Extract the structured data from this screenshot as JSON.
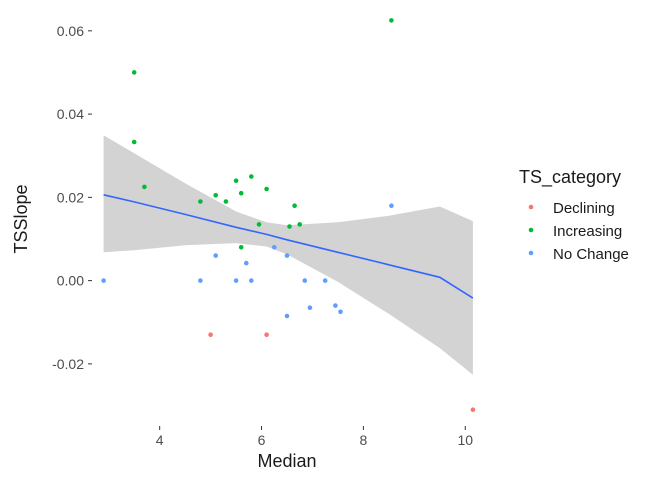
{
  "chart_data": {
    "type": "scatter",
    "title": "",
    "xlabel": "Median",
    "ylabel": "TSSlope",
    "xlim": [
      2.75,
      10.25
    ],
    "ylim": [
      -0.033,
      0.065
    ],
    "x_ticks": [
      4,
      6,
      8,
      10
    ],
    "x_tick_labels": [
      "4",
      "6",
      "8",
      "10"
    ],
    "y_ticks": [
      -0.02,
      0.0,
      0.02,
      0.04,
      0.06
    ],
    "y_tick_labels": [
      "-0.02",
      "0.00",
      "0.02",
      "0.04",
      "0.06"
    ],
    "grid": false,
    "legend": {
      "title": "TS_category",
      "position": "right",
      "entries": [
        {
          "label": "Declining",
          "color": "#f8766d"
        },
        {
          "label": "Increasing",
          "color": "#00ba38"
        },
        {
          "label": "No Change",
          "color": "#619cff"
        }
      ]
    },
    "series": [
      {
        "name": "Declining",
        "color": "#f8766d",
        "points": [
          [
            5.0,
            -0.013
          ],
          [
            6.1,
            -0.013
          ],
          [
            10.15,
            -0.031
          ]
        ]
      },
      {
        "name": "Increasing",
        "color": "#00ba38",
        "points": [
          [
            3.5,
            0.05
          ],
          [
            3.5,
            0.0333
          ],
          [
            3.7,
            0.0225
          ],
          [
            4.8,
            0.019
          ],
          [
            5.1,
            0.0205
          ],
          [
            5.3,
            0.019
          ],
          [
            5.5,
            0.024
          ],
          [
            5.6,
            0.021
          ],
          [
            5.6,
            0.008
          ],
          [
            5.8,
            0.025
          ],
          [
            5.95,
            0.0135
          ],
          [
            6.1,
            0.022
          ],
          [
            6.55,
            0.013
          ],
          [
            6.65,
            0.018
          ],
          [
            6.75,
            0.0135
          ],
          [
            8.55,
            0.0625
          ]
        ]
      },
      {
        "name": "No Change",
        "color": "#619cff",
        "points": [
          [
            2.9,
            0.0
          ],
          [
            4.8,
            0.0
          ],
          [
            5.1,
            0.006
          ],
          [
            5.5,
            0.0
          ],
          [
            5.7,
            0.0042
          ],
          [
            5.8,
            0.0
          ],
          [
            6.25,
            0.008
          ],
          [
            6.5,
            0.006
          ],
          [
            6.5,
            -0.0085
          ],
          [
            6.85,
            0.0
          ],
          [
            6.95,
            -0.0065
          ],
          [
            7.25,
            0.0
          ],
          [
            7.45,
            -0.006
          ],
          [
            7.55,
            -0.0075
          ],
          [
            8.55,
            0.018
          ]
        ]
      }
    ],
    "trend": {
      "method": "linear fit",
      "color": "#3366ff",
      "band_color": "#d3d3d3",
      "x": [
        2.9,
        3.5,
        4.5,
        5.5,
        6.1,
        6.5,
        7.5,
        8.5,
        9.5,
        10.15
      ],
      "y": [
        0.0206,
        0.0189,
        0.0159,
        0.0128,
        0.0111,
        0.0098,
        0.0068,
        0.0038,
        0.0008,
        -0.0042
      ],
      "lower": [
        0.0068,
        0.0073,
        0.0085,
        0.009,
        0.0082,
        0.0063,
        -0.0003,
        -0.008,
        -0.0162,
        -0.0226
      ],
      "upper": [
        0.0349,
        0.0306,
        0.0234,
        0.0166,
        0.014,
        0.0133,
        0.014,
        0.0156,
        0.0178,
        0.0143
      ]
    }
  }
}
